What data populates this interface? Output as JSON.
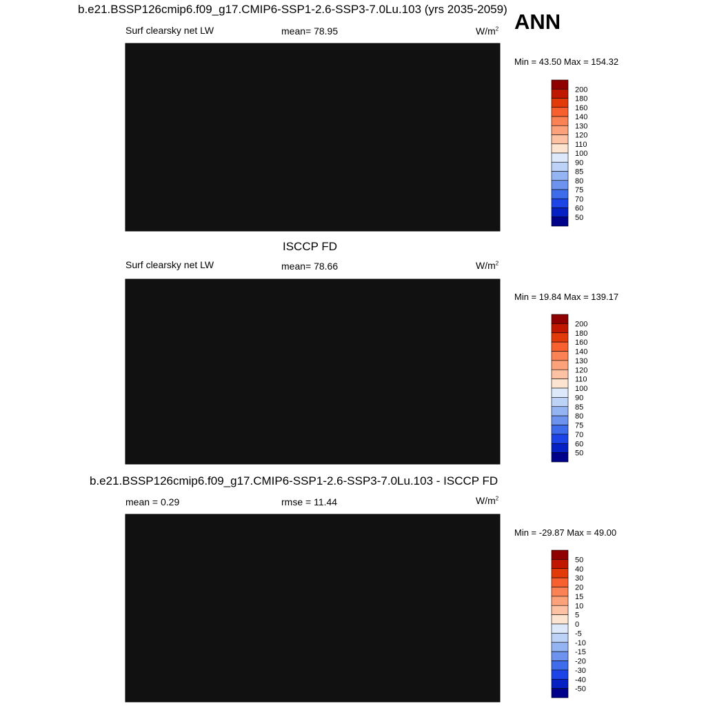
{
  "header": {
    "title": "b.e21.BSSP126cmip6.f09_g17.CMIP6-SSP1-2.6-SSP3-7.0Lu.103 (yrs 2035-2059)",
    "season": "ANN"
  },
  "panels": [
    {
      "id": "model",
      "title": "",
      "left_label": "Surf clearsky net LW",
      "center_label": "mean=  78.95",
      "units": "W/m",
      "units_sup": "2",
      "minmax": "Min =  43.50 Max = 154.32",
      "levels": [
        "200",
        "180",
        "160",
        "140",
        "130",
        "120",
        "110",
        "100",
        "90",
        "85",
        "80",
        "75",
        "70",
        "60",
        "50"
      ],
      "colors": [
        "#8f0000",
        "#c01800",
        "#e33a0a",
        "#f96030",
        "#fb8255",
        "#fca27b",
        "#fcc2a3",
        "#fde4d1",
        "#dde9fb",
        "#bcd2f7",
        "#94b4f2",
        "#6d93ee",
        "#3f6ceb",
        "#1c44e6",
        "#0621c3",
        "#00038a"
      ]
    },
    {
      "id": "obs",
      "title": "ISCCP FD",
      "left_label": "Surf clearsky net LW",
      "center_label": "mean=  78.66",
      "units": "W/m",
      "units_sup": "2",
      "minmax": "Min =  19.84 Max = 139.17",
      "levels": [
        "200",
        "180",
        "160",
        "140",
        "130",
        "120",
        "110",
        "100",
        "90",
        "85",
        "80",
        "75",
        "70",
        "60",
        "50"
      ],
      "colors": [
        "#8f0000",
        "#c01800",
        "#e33a0a",
        "#f96030",
        "#fb8255",
        "#fca27b",
        "#fcc2a3",
        "#fde4d1",
        "#dde9fb",
        "#bcd2f7",
        "#94b4f2",
        "#6d93ee",
        "#3f6ceb",
        "#1c44e6",
        "#0621c3",
        "#00038a"
      ]
    },
    {
      "id": "diff",
      "title": "b.e21.BSSP126cmip6.f09_g17.CMIP6-SSP1-2.6-SSP3-7.0Lu.103 - ISCCP FD",
      "left_label": "mean =   0.29",
      "center_label": "rmse =  11.44",
      "units": "W/m",
      "units_sup": "2",
      "minmax": "Min = -29.87 Max =  49.00",
      "levels": [
        "50",
        "40",
        "30",
        "20",
        "15",
        "10",
        "5",
        "0",
        "-5",
        "-10",
        "-15",
        "-20",
        "-30",
        "-40",
        "-50"
      ],
      "colors": [
        "#8f0000",
        "#c01800",
        "#e33a0a",
        "#f96030",
        "#fb8255",
        "#fca27b",
        "#fcc2a3",
        "#fde4d1",
        "#dde9fb",
        "#bcd2f7",
        "#94b4f2",
        "#6d93ee",
        "#3f6ceb",
        "#1c44e6",
        "#0621c3",
        "#00038a"
      ]
    }
  ]
}
